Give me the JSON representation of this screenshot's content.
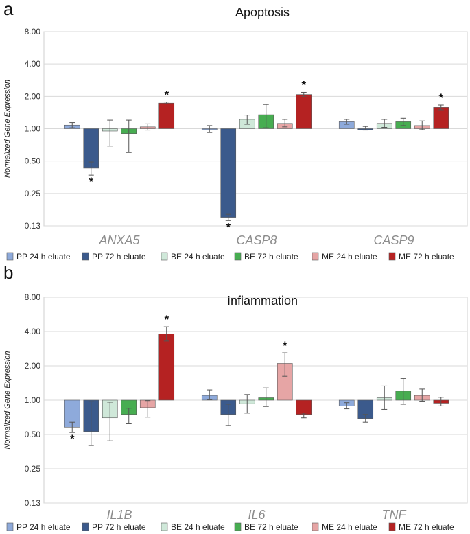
{
  "chart_data": [
    {
      "panel_label": "a",
      "type": "bar",
      "title": "Apoptosis",
      "xlabel": "",
      "ylabel": "Normalized Gene Expression",
      "yscale": "log2",
      "ylim": [
        0.125,
        8.0
      ],
      "baseline": 1.0,
      "y_ticks": [
        8.0,
        4.0,
        2.0,
        1.0,
        0.5,
        0.25,
        0.125
      ],
      "y_tick_labels": [
        "8.00",
        "4.00",
        "2.00",
        "1.00",
        "0.50",
        "0.25",
        "0.13"
      ],
      "categories": [
        "ANXA5",
        "CASP8",
        "CASP9"
      ],
      "series": [
        {
          "name": "PP 24 h eluate",
          "color": "#8eaadb",
          "values": [
            1.08,
            0.98,
            1.16
          ],
          "err_lo": [
            1.02,
            0.92,
            1.1
          ],
          "err_hi": [
            1.14,
            1.07,
            1.22
          ],
          "sig": [
            false,
            false,
            false
          ]
        },
        {
          "name": "PP 72 h eluate",
          "color": "#3b5a8c",
          "values": [
            0.43,
            0.15,
            1.0
          ],
          "err_lo": [
            0.37,
            0.14,
            0.97
          ],
          "err_hi": [
            0.49,
            0.16,
            1.05
          ],
          "sig": [
            true,
            true,
            false
          ]
        },
        {
          "name": "BE 24 h eluate",
          "color": "#cfe8d9",
          "values": [
            0.95,
            1.22,
            1.12
          ],
          "err_lo": [
            0.69,
            1.1,
            1.03
          ],
          "err_hi": [
            1.2,
            1.34,
            1.22
          ],
          "sig": [
            false,
            false,
            false
          ]
        },
        {
          "name": "BE 72 h eluate",
          "color": "#47ad51",
          "values": [
            0.9,
            1.35,
            1.16
          ],
          "err_lo": [
            0.6,
            1.02,
            1.07
          ],
          "err_hi": [
            1.2,
            1.68,
            1.25
          ],
          "sig": [
            false,
            false,
            false
          ]
        },
        {
          "name": "ME 24 h eluate",
          "color": "#e6a5a5",
          "values": [
            1.04,
            1.12,
            1.07
          ],
          "err_lo": [
            0.97,
            1.04,
            0.98
          ],
          "err_hi": [
            1.11,
            1.22,
            1.18
          ],
          "sig": [
            false,
            false,
            false
          ]
        },
        {
          "name": "ME 72 h eluate",
          "color": "#b52222",
          "values": [
            1.73,
            2.08,
            1.58
          ],
          "err_lo": [
            1.7,
            1.98,
            1.5
          ],
          "err_hi": [
            1.77,
            2.18,
            1.66
          ],
          "sig": [
            true,
            true,
            true
          ]
        }
      ],
      "significance_marker": "*"
    },
    {
      "panel_label": "b",
      "type": "bar",
      "title": "Inflammation",
      "xlabel": "",
      "ylabel": "Normalized Gene Expression",
      "yscale": "log2",
      "ylim": [
        0.125,
        8.0
      ],
      "baseline": 1.0,
      "y_ticks": [
        8.0,
        4.0,
        2.0,
        1.0,
        0.5,
        0.25,
        0.125
      ],
      "y_tick_labels": [
        "8.00",
        "4.00",
        "2.00",
        "1.00",
        "0.50",
        "0.25",
        "0.13"
      ],
      "categories": [
        "IL1B",
        "IL6",
        "TNF"
      ],
      "series": [
        {
          "name": "PP 24 h eluate",
          "color": "#8eaadb",
          "values": [
            0.58,
            1.1,
            0.89
          ],
          "err_lo": [
            0.52,
            1.01,
            0.84
          ],
          "err_hi": [
            0.64,
            1.23,
            0.95
          ],
          "sig": [
            true,
            false,
            false
          ]
        },
        {
          "name": "PP 72 h eluate",
          "color": "#3b5a8c",
          "values": [
            0.53,
            0.75,
            0.69
          ],
          "err_lo": [
            0.4,
            0.6,
            0.64
          ],
          "err_hi": [
            0.97,
            0.92,
            0.75
          ],
          "sig": [
            false,
            false,
            false
          ]
        },
        {
          "name": "BE 24 h eluate",
          "color": "#cfe8d9",
          "values": [
            0.7,
            0.93,
            1.05
          ],
          "err_lo": [
            0.44,
            0.77,
            0.83
          ],
          "err_hi": [
            0.96,
            1.12,
            1.33
          ],
          "sig": [
            false,
            false,
            false
          ]
        },
        {
          "name": "BE 72 h eluate",
          "color": "#47ad51",
          "values": [
            0.75,
            1.05,
            1.2
          ],
          "err_lo": [
            0.62,
            0.88,
            0.92
          ],
          "err_hi": [
            0.85,
            1.28,
            1.55
          ],
          "sig": [
            false,
            false,
            false
          ]
        },
        {
          "name": "ME 24 h eluate",
          "color": "#e6a5a5",
          "values": [
            0.86,
            2.1,
            1.1
          ],
          "err_lo": [
            0.71,
            1.62,
            0.98
          ],
          "err_hi": [
            0.99,
            2.6,
            1.25
          ],
          "sig": [
            false,
            true,
            false
          ]
        },
        {
          "name": "ME 72 h eluate",
          "color": "#b52222",
          "values": [
            3.8,
            0.75,
            0.94
          ],
          "err_lo": [
            3.3,
            0.7,
            0.89
          ],
          "err_hi": [
            4.4,
            0.77,
            1.06
          ],
          "sig": [
            true,
            false,
            false
          ]
        }
      ],
      "significance_marker": "*"
    }
  ]
}
